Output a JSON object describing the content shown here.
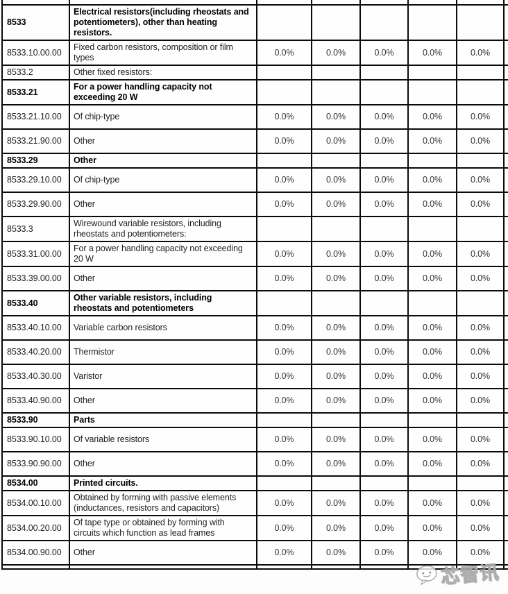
{
  "table": {
    "rate_placeholder": "0.0%",
    "rows": [
      {
        "type": "partial",
        "code": "",
        "desc": "",
        "emphasis": false,
        "values": []
      },
      {
        "type": "section",
        "code": "8533",
        "desc": "Electrical resistors(including rheostats and potentiometers), other than heating resistors.",
        "emphasis": true,
        "values": []
      },
      {
        "type": "detail",
        "code": "8533.10.00.00",
        "desc": "Fixed carbon resistors, composition or film types",
        "emphasis": false,
        "values": [
          "0.0%",
          "0.0%",
          "0.0%",
          "0.0%",
          "0.0%"
        ]
      },
      {
        "type": "section",
        "code": "8533.2",
        "desc": "Other fixed resistors:",
        "emphasis": false,
        "values": []
      },
      {
        "type": "section",
        "code": "8533.21",
        "desc": "For a power handling capacity not exceeding 20 W",
        "emphasis": true,
        "values": []
      },
      {
        "type": "detail",
        "code": "8533.21.10.00",
        "desc": "Of chip-type",
        "emphasis": false,
        "values": [
          "0.0%",
          "0.0%",
          "0.0%",
          "0.0%",
          "0.0%"
        ]
      },
      {
        "type": "detail",
        "code": "8533.21.90.00",
        "desc": "Other",
        "emphasis": false,
        "values": [
          "0.0%",
          "0.0%",
          "0.0%",
          "0.0%",
          "0.0%"
        ]
      },
      {
        "type": "section",
        "code": "8533.29",
        "desc": "Other",
        "emphasis": true,
        "values": []
      },
      {
        "type": "detail",
        "code": "8533.29.10.00",
        "desc": "Of chip-type",
        "emphasis": false,
        "values": [
          "0.0%",
          "0.0%",
          "0.0%",
          "0.0%",
          "0.0%"
        ]
      },
      {
        "type": "detail",
        "code": "8533.29.90.00",
        "desc": "Other",
        "emphasis": false,
        "values": [
          "0.0%",
          "0.0%",
          "0.0%",
          "0.0%",
          "0.0%"
        ]
      },
      {
        "type": "section",
        "code": "8533.3",
        "desc": "Wirewound variable resistors, including rheostats and potentiometers:",
        "emphasis": false,
        "values": []
      },
      {
        "type": "detail",
        "code": "8533.31.00.00",
        "desc": "For a power handling capacity not exceeding 20 W",
        "emphasis": false,
        "values": [
          "0.0%",
          "0.0%",
          "0.0%",
          "0.0%",
          "0.0%"
        ]
      },
      {
        "type": "detail",
        "code": "8533.39.00.00",
        "desc": "Other",
        "emphasis": false,
        "values": [
          "0.0%",
          "0.0%",
          "0.0%",
          "0.0%",
          "0.0%"
        ]
      },
      {
        "type": "section",
        "code": "8533.40",
        "desc": "Other variable resistors, including rheostats and potentiometers",
        "emphasis": true,
        "values": []
      },
      {
        "type": "detail",
        "code": "8533.40.10.00",
        "desc": "Variable carbon resistors",
        "emphasis": false,
        "values": [
          "0.0%",
          "0.0%",
          "0.0%",
          "0.0%",
          "0.0%"
        ]
      },
      {
        "type": "detail",
        "code": "8533.40.20.00",
        "desc": "Thermistor",
        "emphasis": false,
        "values": [
          "0.0%",
          "0.0%",
          "0.0%",
          "0.0%",
          "0.0%"
        ]
      },
      {
        "type": "detail",
        "code": "8533.40.30.00",
        "desc": "Varistor",
        "emphasis": false,
        "values": [
          "0.0%",
          "0.0%",
          "0.0%",
          "0.0%",
          "0.0%"
        ]
      },
      {
        "type": "detail",
        "code": "8533.40.90.00",
        "desc": "Other",
        "emphasis": false,
        "values": [
          "0.0%",
          "0.0%",
          "0.0%",
          "0.0%",
          "0.0%"
        ]
      },
      {
        "type": "section",
        "code": "8533.90",
        "desc": "Parts",
        "emphasis": true,
        "values": []
      },
      {
        "type": "detail",
        "code": "8533.90.10.00",
        "desc": "Of variable resistors",
        "emphasis": false,
        "values": [
          "0.0%",
          "0.0%",
          "0.0%",
          "0.0%",
          "0.0%"
        ]
      },
      {
        "type": "detail",
        "code": "8533.90.90.00",
        "desc": "Other",
        "emphasis": false,
        "values": [
          "0.0%",
          "0.0%",
          "0.0%",
          "0.0%",
          "0.0%"
        ]
      },
      {
        "type": "section",
        "code": "8534.00",
        "desc": "Printed circuits.",
        "emphasis": true,
        "values": []
      },
      {
        "type": "detail",
        "code": "8534.00.10.00",
        "desc": "Obtained by forming with passive elements (inductances, resistors and capacitors)",
        "emphasis": false,
        "values": [
          "0.0%",
          "0.0%",
          "0.0%",
          "0.0%",
          "0.0%"
        ]
      },
      {
        "type": "detail",
        "code": "8534.00.20.00",
        "desc": "Of tape type or obtained by forming with circuits which function as lead frames",
        "emphasis": false,
        "values": [
          "0.0%",
          "0.0%",
          "0.0%",
          "0.0%",
          "0.0%"
        ]
      },
      {
        "type": "detail",
        "code": "8534.00.90.00",
        "desc": "Other",
        "emphasis": false,
        "values": [
          "0.0%",
          "0.0%",
          "0.0%",
          "0.0%",
          "0.0%"
        ]
      },
      {
        "type": "partial",
        "code": "",
        "desc": "",
        "emphasis": false,
        "values": []
      }
    ]
  },
  "watermark": {
    "text": "芯智讯"
  },
  "colors": {
    "border": "#0a0a0a",
    "text": "#222222",
    "bold_text": "#000000",
    "background": "#fdfdfd",
    "watermark_fill": "#ffffff",
    "watermark_stroke": "#a8a8a8"
  }
}
